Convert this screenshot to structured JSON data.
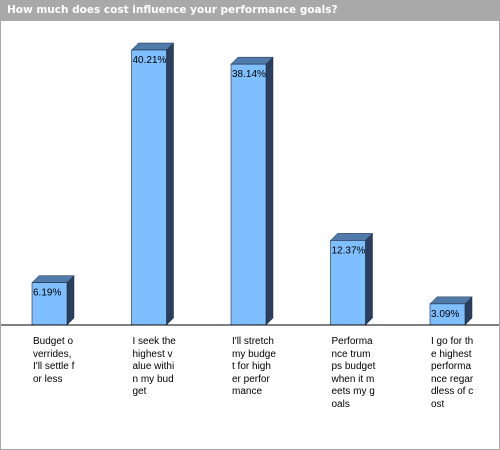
{
  "colors": {
    "bar_front": "#7fbfff",
    "bar_side": "#2a3f5e",
    "bar_top": "#4f7aaa",
    "title_bar": "#a9a9a9",
    "baseline": "#000000"
  },
  "chart_data": {
    "type": "bar",
    "title": "How much does cost influence your performance goals?",
    "xlabel": "",
    "ylabel": "",
    "ylim": [
      0,
      42
    ],
    "grid": false,
    "legend": "none",
    "three_d": true,
    "categories": [
      "Budget overrides, I'll settle for less",
      "I seek the highest value within my budget",
      "I'll stretch my budget for higher performance",
      "Performance trumps budget when it meets my goals",
      "I go for the highest performance regardless of cost"
    ],
    "values": [
      6.19,
      40.21,
      38.14,
      12.37,
      3.09
    ],
    "value_labels": [
      "6.19%",
      "40.21%",
      "38.14%",
      "12.37%",
      "3.09%"
    ]
  }
}
